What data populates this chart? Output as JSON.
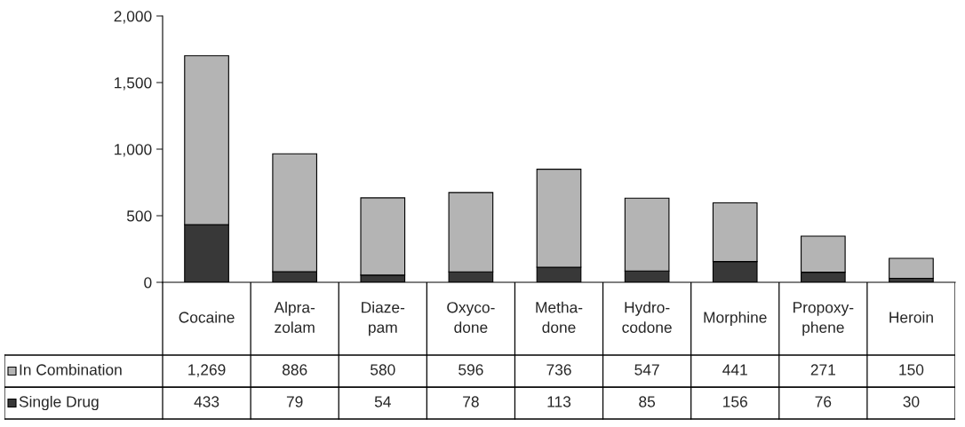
{
  "chart_data": {
    "type": "bar",
    "stacked": true,
    "categories": [
      "Cocaine",
      "Alpra-\nzolam",
      "Diaze-\npam",
      "Oxyco-\ndone",
      "Metha-\ndone",
      "Hydro-\ncodone",
      "Morphine",
      "Propoxy-\nphene",
      "Heroin"
    ],
    "series": [
      {
        "name": "Single Drug",
        "color": "#383838",
        "values": [
          433,
          79,
          54,
          78,
          113,
          85,
          156,
          76,
          30
        ],
        "value_labels": [
          "433",
          "79",
          "54",
          "78",
          "113",
          "85",
          "156",
          "76",
          "30"
        ]
      },
      {
        "name": "In Combination",
        "color": "#b4b4b4",
        "values": [
          1269,
          886,
          580,
          596,
          736,
          547,
          441,
          271,
          150
        ],
        "value_labels": [
          "1,269",
          "886",
          "580",
          "596",
          "736",
          "547",
          "441",
          "271",
          "150"
        ]
      }
    ],
    "ylim": [
      0,
      2000
    ],
    "yticks": [
      0,
      500,
      {
        "value": 1000,
        "label": "1,000"
      },
      {
        "value": 1500,
        "label": "1,500"
      },
      {
        "value": 2000,
        "label": "2,000"
      }
    ],
    "grid": false,
    "legend": "bottom left"
  }
}
